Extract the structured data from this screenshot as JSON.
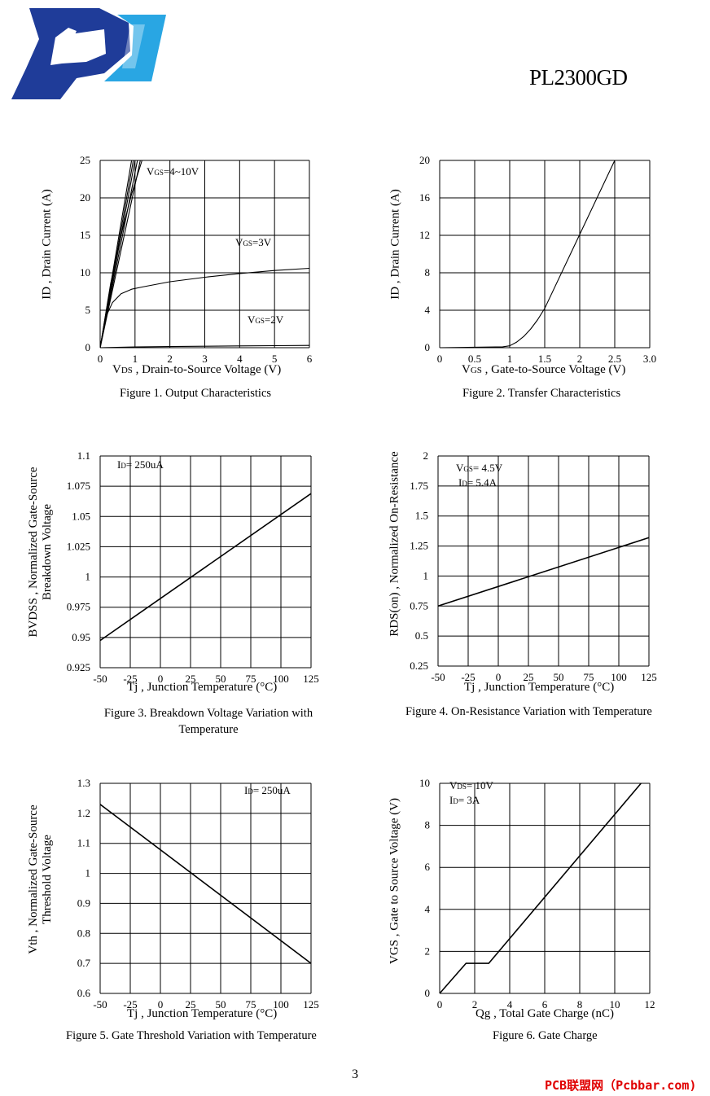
{
  "header": {
    "part_number": "PL2300GD"
  },
  "footer": {
    "page_number": "3",
    "watermark": "PCB联盟网（Pcbbar.com)"
  },
  "colors": {
    "logo_dark": "#1f3c99",
    "logo_light": "#29a6e3",
    "watermark": "#e00000"
  },
  "figures": [
    {
      "caption": "Figure 1. Output Characteristics",
      "xlabel_sym": "V",
      "xlabel_sub": "DS",
      "xlabel_rest": " , Drain-to-Source Voltage (V)",
      "ylabel": "ID , Drain Current (A)",
      "annotations": [
        {
          "sym": "V",
          "sub": "GS",
          "rest": "=4~10V"
        },
        {
          "sym": "V",
          "sub": "GS",
          "rest": "=3V"
        },
        {
          "sym": "V",
          "sub": "GS",
          "rest": "=2V"
        }
      ]
    },
    {
      "caption": "Figure 2. Transfer Characteristics",
      "xlabel_sym": "V",
      "xlabel_sub": "GS",
      "xlabel_rest": " , Gate-to-Source Voltage (V)",
      "ylabel": "ID , Drain Current (A)"
    },
    {
      "caption_lines": [
        "Figure 3. Breakdown Voltage Variation with",
        "Temperature"
      ],
      "xlabel": "Tj , Junction Temperature (°C)",
      "ylabel_lines": [
        "BVDSS , Normalized Gate-Source",
        "Breakdown Voltage"
      ],
      "annotations": [
        {
          "sym": "I",
          "sub": "D",
          "rest": "= 250uA"
        }
      ]
    },
    {
      "caption": "Figure 4. On-Resistance Variation with Temperature",
      "xlabel": "Tj , Junction Temperature (°C)",
      "ylabel": "RDS(on) , Normalized On-Resistance",
      "annotations": [
        {
          "sym": "V",
          "sub": "GS",
          "rest": "= 4.5V"
        },
        {
          "sym": "I",
          "sub": "D",
          "rest": "= 5.4A"
        }
      ]
    },
    {
      "caption": "Figure 5. Gate Threshold Variation with Temperature",
      "xlabel": "Tj , Junction Temperature (°C)",
      "ylabel_lines": [
        "Vth , Normalized Gate-Source",
        "Threshold Voltage"
      ],
      "annotations": [
        {
          "sym": "I",
          "sub": "D",
          "rest": "= 250uA"
        }
      ]
    },
    {
      "caption": "Figure 6. Gate Charge",
      "xlabel": "Qg , Total Gate Charge (nC)",
      "ylabel": "VGS , Gate to Source Voltage (V)",
      "annotations": [
        {
          "sym": "V",
          "sub": "DS",
          "rest": "= 10V"
        },
        {
          "sym": "I",
          "sub": "D",
          "rest": "= 3A"
        }
      ]
    }
  ],
  "chart_data": [
    {
      "type": "line",
      "title": "Figure 1. Output Characteristics",
      "xlabel": "VDS , Drain-to-Source Voltage (V)",
      "ylabel": "ID , Drain Current (A)",
      "xlim": [
        0,
        6
      ],
      "ylim": [
        0,
        25
      ],
      "xticks": [
        "0",
        "1",
        "2",
        "3",
        "4",
        "5",
        "6"
      ],
      "yticks": [
        "0",
        "5",
        "10",
        "15",
        "20",
        "25"
      ],
      "grid": true,
      "series": [
        {
          "name": "VGS=4~10V (steep)",
          "x": [
            0,
            0.9
          ],
          "y": [
            0,
            25
          ]
        },
        {
          "name": "VGS=4~10V",
          "x": [
            0,
            0.95
          ],
          "y": [
            0,
            25
          ]
        },
        {
          "name": "VGS=4~10V",
          "x": [
            0,
            1.0
          ],
          "y": [
            0,
            25
          ]
        },
        {
          "name": "VGS=4~10V",
          "x": [
            0,
            1.07
          ],
          "y": [
            0,
            25
          ]
        },
        {
          "name": "VGS=4~10V",
          "x": [
            0,
            1.15
          ],
          "y": [
            0,
            25
          ]
        },
        {
          "name": "VGS=4~10V (low)",
          "x": [
            0,
            0.3,
            0.6,
            0.9,
            1.2
          ],
          "y": [
            0,
            8.5,
            15,
            20.5,
            25
          ]
        },
        {
          "name": "VGS=3V",
          "x": [
            0,
            0.1,
            0.2,
            0.35,
            0.6,
            0.9,
            1.2,
            2,
            3,
            4,
            5,
            6
          ],
          "y": [
            0,
            2.5,
            4.5,
            6,
            7.2,
            7.8,
            8.1,
            8.8,
            9.4,
            9.9,
            10.3,
            10.6
          ]
        },
        {
          "name": "VGS=2V",
          "x": [
            0,
            1,
            2,
            3,
            4,
            5,
            6
          ],
          "y": [
            0,
            0.1,
            0.15,
            0.2,
            0.24,
            0.27,
            0.3
          ]
        }
      ]
    },
    {
      "type": "line",
      "title": "Figure 2. Transfer Characteristics",
      "xlabel": "VGS , Gate-to-Source Voltage (V)",
      "ylabel": "ID , Drain Current (A)",
      "xlim": [
        0,
        3
      ],
      "ylim": [
        0,
        20
      ],
      "xticks": [
        "0",
        "0.5",
        "1",
        "1.5",
        "2",
        "2.5",
        "3.0"
      ],
      "yticks": [
        "0",
        "4",
        "8",
        "12",
        "16",
        "20"
      ],
      "grid": true,
      "series": [
        {
          "x": [
            0,
            0.5,
            0.9,
            1.0,
            1.1,
            1.2,
            1.3,
            1.4,
            1.5,
            2.0,
            2.5
          ],
          "y": [
            0,
            0.05,
            0.1,
            0.2,
            0.6,
            1.2,
            2.0,
            3.0,
            4.2,
            12.1,
            20
          ]
        }
      ]
    },
    {
      "type": "line",
      "title": "Figure 3. Breakdown Voltage Variation with Temperature",
      "xlabel": "Tj , Junction Temperature (°C)",
      "ylabel": "BVDSS , Normalized Gate-Source Breakdown Voltage",
      "xlim": [
        -50,
        125
      ],
      "ylim": [
        0.925,
        1.1
      ],
      "xticks": [
        "-50",
        "-25",
        "0",
        "25",
        "50",
        "75",
        "100",
        "125"
      ],
      "yticks": [
        "0.925",
        "0.95",
        "0.975",
        "1",
        "1.025",
        "1.05",
        "1.075",
        "1.1"
      ],
      "grid": true,
      "series": [
        {
          "x": [
            -50,
            125
          ],
          "y": [
            0.9475,
            1.069
          ]
        }
      ]
    },
    {
      "type": "line",
      "title": "Figure 4. On-Resistance Variation with Temperature",
      "xlabel": "Tj , Junction Temperature (°C)",
      "ylabel": "RDS(on) , Normalized On-Resistance",
      "xlim": [
        -50,
        125
      ],
      "ylim": [
        0.25,
        2
      ],
      "xticks": [
        "-50",
        "-25",
        "0",
        "25",
        "50",
        "75",
        "100",
        "125"
      ],
      "yticks": [
        "0.25",
        "0.5",
        "0.75",
        "1",
        "1.25",
        "1.5",
        "1.75",
        "2"
      ],
      "grid": true,
      "series": [
        {
          "x": [
            -50,
            125
          ],
          "y": [
            0.75,
            1.32
          ]
        }
      ]
    },
    {
      "type": "line",
      "title": "Figure 5. Gate Threshold Variation with Temperature",
      "xlabel": "Tj , Junction Temperature (°C)",
      "ylabel": "Vth , Normalized Gate-Source Threshold Voltage",
      "xlim": [
        -50,
        125
      ],
      "ylim": [
        0.6,
        1.3
      ],
      "xticks": [
        "-50",
        "-25",
        "0",
        "25",
        "50",
        "75",
        "100",
        "125"
      ],
      "yticks": [
        "0.6",
        "0.7",
        "0.8",
        "0.9",
        "1",
        "1.1",
        "1.2",
        "1.3"
      ],
      "grid": true,
      "series": [
        {
          "x": [
            -50,
            125
          ],
          "y": [
            1.23,
            0.7
          ]
        }
      ]
    },
    {
      "type": "line",
      "title": "Figure 6. Gate Charge",
      "xlabel": "Qg , Total Gate Charge (nC)",
      "ylabel": "VGS , Gate to Source Voltage (V)",
      "xlim": [
        0,
        12
      ],
      "ylim": [
        0,
        10.5
      ],
      "xticks": [
        "0",
        "2",
        "4",
        "6",
        "8",
        "10",
        "12"
      ],
      "yticks": [
        "0",
        "2",
        "4",
        "6",
        "8",
        "10"
      ],
      "grid": true,
      "series": [
        {
          "x": [
            0,
            1.5,
            2.8,
            11.5
          ],
          "y": [
            0,
            1.5,
            1.5,
            10.5
          ]
        }
      ]
    }
  ]
}
